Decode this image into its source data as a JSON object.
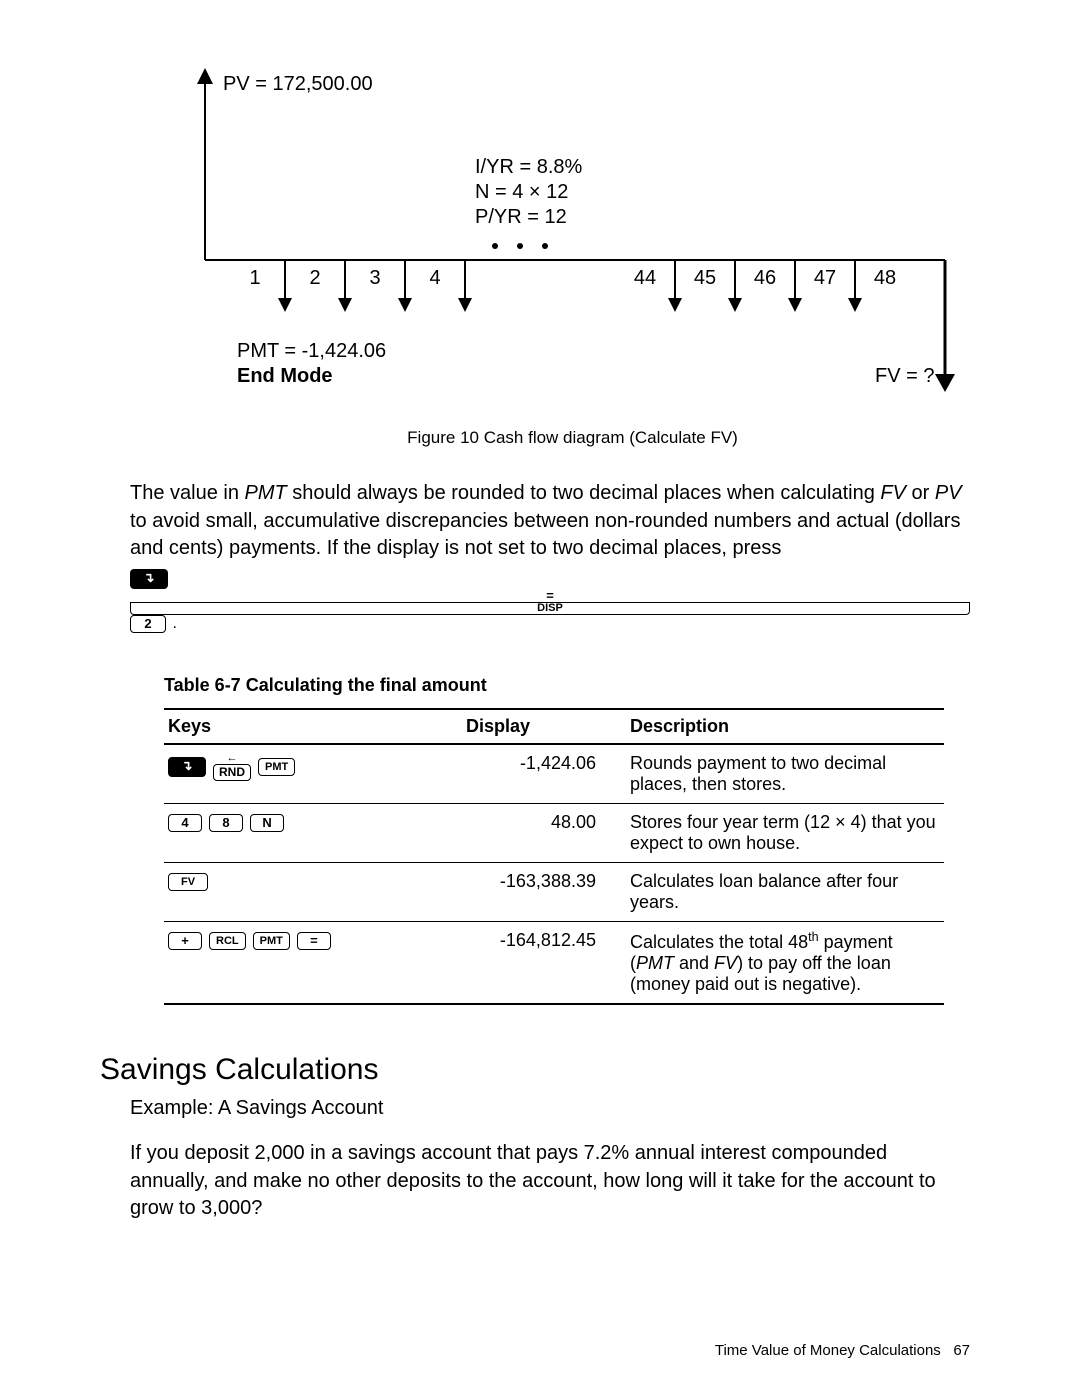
{
  "diagram": {
    "pv_label": "PV = 172,500.00",
    "iyr_label": "I/YR = 8.8%",
    "n_label": "N = 4 × 12",
    "pyr_label": "P/YR = 12",
    "ticks_left": [
      "1",
      "2",
      "3",
      "4"
    ],
    "ticks_right": [
      "44",
      "45",
      "46",
      "47",
      "48"
    ],
    "pmt_label": "PMT = -1,424.06",
    "end_mode_label": "End Mode",
    "fv_label": "FV = ?",
    "caption": "Figure 10  Cash flow diagram (Calculate FV)",
    "colors": {
      "line": "#000000",
      "bg": "#ffffff"
    },
    "font_size_axis": 20,
    "font_size_mid": 20
  },
  "paragraph": {
    "p1a": "The value in ",
    "p1b": "PMT",
    "p1c": " should always be rounded to two decimal places when calculating ",
    "p1d": "FV",
    "p1e": " or ",
    "p1f": "PV",
    "p1g": " to avoid small, accumulative discrepancies between non-rounded numbers and actual (dollars and cents) payments. If the display is not set to two decimal places, press",
    "keys": {
      "shift_glyph": "↴",
      "disp_top": "=",
      "disp_bot": "DISP",
      "two": "2"
    }
  },
  "table": {
    "title": "Table 6-7  Calculating the final amount",
    "headers": {
      "keys": "Keys",
      "display": "Display",
      "description": "Description"
    },
    "rows": [
      {
        "keys_type": "row1",
        "display": "-1,424.06",
        "description": "Rounds payment to two decimal places, then stores."
      },
      {
        "keys_type": "row2",
        "display": "48.00",
        "description": "Stores four year term (12 × 4) that you expect to own house."
      },
      {
        "keys_type": "row3",
        "display": "-163,388.39",
        "description": "Calculates loan balance after four years."
      },
      {
        "keys_type": "row4",
        "display": "-164,812.45",
        "description_html": "Calculates the total 48<sup>th</sup> payment (<span class=\"italic\">PMT</span> and <span class=\"italic\">FV</span>) to pay off the loan (money paid out is negative)."
      }
    ],
    "key_labels": {
      "shift": "↴",
      "rnd_top": "←",
      "rnd": "RND",
      "pmt": "PMT",
      "four": "4",
      "eight": "8",
      "n": "N",
      "fv": "FV",
      "plus": "+",
      "rcl": "RCL",
      "eq": "="
    }
  },
  "section": {
    "heading": "Savings Calculations",
    "subhead": "Example: A Savings Account",
    "body": "If you deposit 2,000 in a savings account that pays 7.2% annual interest compounded annually, and make no other deposits to the account, how long will it take for the account to grow to 3,000?"
  },
  "footer": {
    "chapter": "Time Value of Money Calculations",
    "page": "67"
  }
}
